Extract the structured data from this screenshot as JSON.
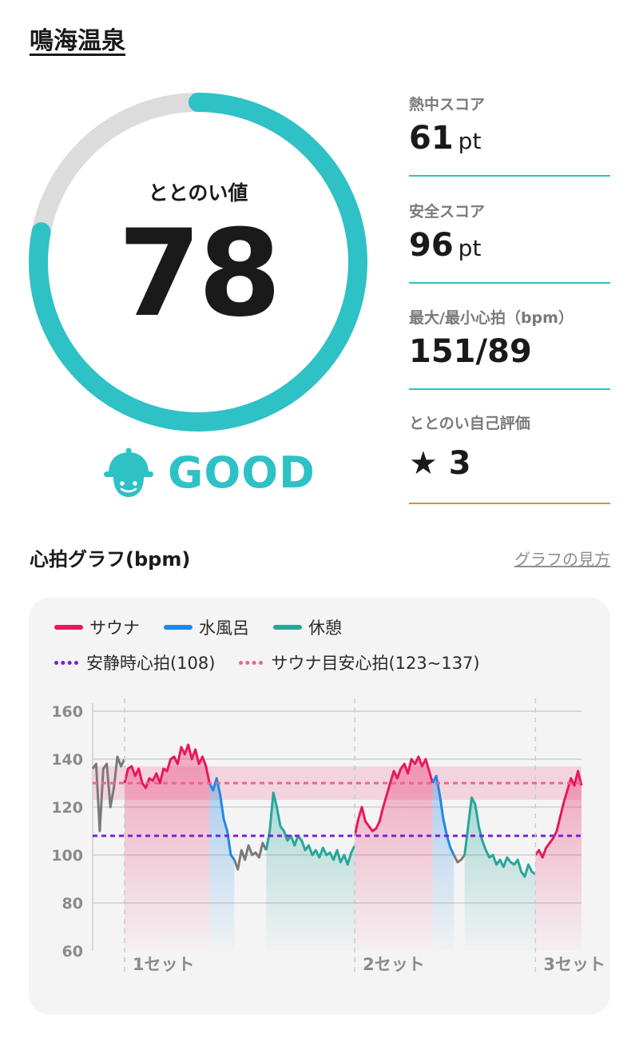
{
  "facility_name": "鳴海温泉",
  "score": {
    "label": "ととのい値",
    "value": "78",
    "max": 100
  },
  "status": {
    "text": "GOOD",
    "icon": "helmet-face-icon",
    "color": "#2ec1c6"
  },
  "stats": [
    {
      "label": "熱中スコア",
      "value": "61",
      "unit": "pt",
      "accent": "#2ec1c6"
    },
    {
      "label": "安全スコア",
      "value": "96",
      "unit": "pt",
      "accent": "#2ec1c6"
    },
    {
      "label": "最大/最小心拍（bpm）",
      "value": "151/89",
      "unit": "",
      "accent": "#2ec1c6"
    },
    {
      "label": "ととのい自己評価",
      "value": "★ 3",
      "unit": "",
      "accent": "#d9913c"
    }
  ],
  "graph": {
    "title": "心拍グラフ(bpm)",
    "help_link": "グラフの見方"
  },
  "legend": {
    "sauna": "サウナ",
    "cold_bath": "水風呂",
    "rest": "休憩",
    "resting_hr": "安静時心拍(108)",
    "target_hr": "サウナ目安心拍(123~137)"
  },
  "colors": {
    "sauna": "#e8175d",
    "cold_bath": "#1e88e5",
    "rest": "#26a69a",
    "other": "#7a7a7a",
    "resting": "#7b1fe0",
    "target": "#f06292"
  },
  "chart_data": {
    "type": "line",
    "ylim": [
      60,
      160
    ],
    "yticks": [
      60,
      80,
      100,
      120,
      140,
      160
    ],
    "set_labels": [
      "1セット",
      "2セット",
      "3セット"
    ],
    "reference_lines": [
      {
        "name": "安静時心拍(108)",
        "value": 108
      },
      {
        "name": "サウナ目安心拍(123~137)",
        "value": 130,
        "band": [
          123,
          137
        ]
      }
    ],
    "segments": [
      {
        "phase": "other",
        "values": [
          136,
          138,
          110,
          136,
          138,
          120,
          128,
          141,
          137,
          140
        ]
      },
      {
        "phase": "sauna",
        "values": [
          130,
          136,
          137,
          133,
          136,
          130,
          128,
          132,
          131,
          134,
          130,
          136,
          135,
          140,
          141,
          138,
          145,
          142,
          146,
          140,
          144,
          138,
          141,
          137,
          130
        ]
      },
      {
        "phase": "cold_bath",
        "values": [
          130,
          127,
          132,
          125,
          115,
          110,
          100,
          98
        ]
      },
      {
        "phase": "other",
        "values": [
          98,
          94,
          102,
          98,
          104,
          100,
          101,
          99,
          105,
          102
        ]
      },
      {
        "phase": "rest",
        "values": [
          102,
          110,
          126,
          120,
          112,
          110,
          106,
          108,
          104,
          108,
          106,
          102,
          104,
          100,
          102,
          99,
          103,
          100,
          101,
          98,
          102,
          97,
          100,
          96,
          101,
          104
        ]
      },
      {
        "phase": "sauna",
        "values": [
          108,
          115,
          120,
          114,
          112,
          110,
          111,
          114,
          120,
          125,
          130,
          135,
          132,
          136,
          138,
          134,
          140,
          138,
          141,
          137,
          140,
          135,
          130
        ]
      },
      {
        "phase": "cold_bath",
        "values": [
          130,
          133,
          125,
          115,
          108,
          103,
          100
        ]
      },
      {
        "phase": "other",
        "values": [
          100,
          97,
          98,
          100
        ]
      },
      {
        "phase": "rest",
        "values": [
          100,
          112,
          124,
          121,
          112,
          106,
          102,
          99,
          100,
          96,
          98,
          95,
          99,
          97,
          96,
          98,
          93,
          91,
          96,
          93,
          92
        ]
      },
      {
        "phase": "sauna",
        "values": [
          100,
          102,
          99,
          103,
          105,
          107,
          110,
          116,
          122,
          127,
          132,
          129,
          135,
          129
        ]
      }
    ]
  }
}
